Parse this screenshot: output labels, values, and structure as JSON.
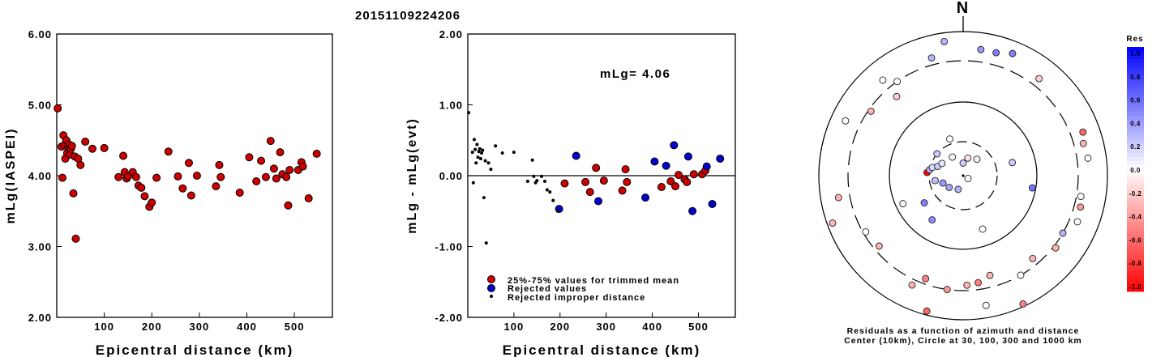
{
  "title": "20151109224206",
  "colors": {
    "red": "#cc0000",
    "blue": "#0000cc",
    "black": "#000000"
  },
  "left_plot": {
    "xlabel": "Epicentral distance (km)",
    "ylabel": "mLg(IASPEI)",
    "xticks": [
      "100",
      "200",
      "300",
      "400",
      "500"
    ],
    "yticks": [
      "6.00",
      "5.00",
      "4.00",
      "3.00",
      "2.00"
    ]
  },
  "mid_plot": {
    "xlabel": "Epicentral distance (km)",
    "ylabel": "mLg - mLg(evt)",
    "annotation": "mLg= 4.06",
    "xticks": [
      "100",
      "200",
      "300",
      "400",
      "500"
    ],
    "yticks": [
      "2.00",
      "1.00",
      "0.00",
      "-1.00",
      "-2.00"
    ],
    "legend": [
      "25%-75% values for trimmed mean",
      "Rejected values",
      "Rejected improper distance"
    ]
  },
  "polar_plot": {
    "north_label": "N",
    "caption_line1": "Residuals as a function of azimuth and distance",
    "caption_line2": "Center (10km), Circle at 30, 100, 300 and 1000 km"
  },
  "colorbar": {
    "title": "Res",
    "labels": [
      "1.0",
      "0.8",
      "0.6",
      "0.4",
      "0.2",
      "0.0",
      "-0.2",
      "-0.4",
      "-0.6",
      "-0.8",
      "-1.0"
    ]
  },
  "chart_data": [
    {
      "type": "scatter",
      "title": "20151109224206",
      "xlabel": "Epicentral distance (km)",
      "ylabel": "mLg(IASPEI)",
      "xlim": [
        0,
        580
      ],
      "ylim": [
        2.0,
        6.0
      ],
      "points": [
        [
          2,
          4.95
        ],
        [
          10,
          4.41
        ],
        [
          12,
          3.97
        ],
        [
          14,
          4.57
        ],
        [
          16,
          4.43
        ],
        [
          18,
          4.24
        ],
        [
          20,
          4.5
        ],
        [
          22,
          4.32
        ],
        [
          24,
          4.4
        ],
        [
          26,
          4.44
        ],
        [
          28,
          4.3
        ],
        [
          30,
          4.38
        ],
        [
          32,
          4.42
        ],
        [
          35,
          3.75
        ],
        [
          38,
          4.27
        ],
        [
          40,
          3.11
        ],
        [
          45,
          4.24
        ],
        [
          50,
          4.15
        ],
        [
          60,
          4.48
        ],
        [
          75,
          4.38
        ],
        [
          100,
          4.39
        ],
        [
          130,
          3.98
        ],
        [
          140,
          4.28
        ],
        [
          143,
          4.05
        ],
        [
          147,
          3.96
        ],
        [
          150,
          3.99
        ],
        [
          160,
          4.05
        ],
        [
          167,
          3.98
        ],
        [
          172,
          3.86
        ],
        [
          178,
          3.83
        ],
        [
          185,
          3.71
        ],
        [
          195,
          3.56
        ],
        [
          200,
          3.62
        ],
        [
          210,
          3.97
        ],
        [
          235,
          4.34
        ],
        [
          255,
          3.99
        ],
        [
          265,
          3.82
        ],
        [
          278,
          4.18
        ],
        [
          283,
          3.72
        ],
        [
          295,
          4.0
        ],
        [
          335,
          3.85
        ],
        [
          342,
          4.15
        ],
        [
          345,
          3.98
        ],
        [
          385,
          3.76
        ],
        [
          405,
          4.26
        ],
        [
          420,
          3.92
        ],
        [
          430,
          4.21
        ],
        [
          440,
          3.98
        ],
        [
          450,
          4.49
        ],
        [
          457,
          4.1
        ],
        [
          462,
          3.96
        ],
        [
          470,
          4.33
        ],
        [
          475,
          4.02
        ],
        [
          483,
          3.98
        ],
        [
          487,
          3.58
        ],
        [
          490,
          4.08
        ],
        [
          508,
          4.08
        ],
        [
          515,
          4.19
        ],
        [
          518,
          4.13
        ],
        [
          530,
          3.68
        ],
        [
          547,
          4.31
        ]
      ]
    },
    {
      "type": "scatter",
      "xlabel": "Epicentral distance (km)",
      "ylabel": "mLg - mLg(evt)",
      "xlim": [
        0,
        580
      ],
      "ylim": [
        -2.0,
        2.0
      ],
      "annotations": [
        "mLg= 4.06"
      ],
      "reference_line": 0.0,
      "series": [
        {
          "name": "25%-75% values for trimmed mean",
          "color": "#cc0000",
          "points": [
            [
              210,
              -0.11
            ],
            [
              255,
              -0.09
            ],
            [
              265,
              -0.23
            ],
            [
              278,
              0.11
            ],
            [
              295,
              -0.07
            ],
            [
              335,
              -0.21
            ],
            [
              342,
              0.09
            ],
            [
              345,
              -0.09
            ],
            [
              420,
              -0.16
            ],
            [
              440,
              -0.08
            ],
            [
              450,
              -0.15
            ],
            [
              457,
              0.01
            ],
            [
              470,
              -0.05
            ],
            [
              475,
              -0.09
            ],
            [
              490,
              0.02
            ],
            [
              508,
              0.02
            ],
            [
              515,
              0.07
            ]
          ]
        },
        {
          "name": "Rejected values",
          "color": "#0000cc",
          "points": [
            [
              198,
              -0.47
            ],
            [
              235,
              0.28
            ],
            [
              283,
              -0.36
            ],
            [
              385,
              -0.31
            ],
            [
              405,
              0.2
            ],
            [
              430,
              0.14
            ],
            [
              447,
              0.43
            ],
            [
              478,
              0.27
            ],
            [
              487,
              -0.5
            ],
            [
              518,
              0.13
            ],
            [
              530,
              -0.4
            ],
            [
              547,
              0.24
            ]
          ]
        },
        {
          "name": "Rejected improper distance",
          "color": "#000000",
          "points": [
            [
              2,
              0.89
            ],
            [
              10,
              0.33
            ],
            [
              12,
              -0.1
            ],
            [
              14,
              0.51
            ],
            [
              16,
              0.37
            ],
            [
              18,
              0.18
            ],
            [
              20,
              0.44
            ],
            [
              22,
              0.26
            ],
            [
              24,
              0.34
            ],
            [
              26,
              0.38
            ],
            [
              28,
              0.24
            ],
            [
              30,
              0.32
            ],
            [
              32,
              0.36
            ],
            [
              35,
              -0.31
            ],
            [
              38,
              0.21
            ],
            [
              40,
              -0.95
            ],
            [
              45,
              0.18
            ],
            [
              50,
              0.09
            ],
            [
              60,
              0.42
            ],
            [
              75,
              0.32
            ],
            [
              100,
              0.33
            ],
            [
              130,
              -0.08
            ],
            [
              140,
              0.22
            ],
            [
              143,
              -0.01
            ],
            [
              147,
              -0.1
            ],
            [
              150,
              -0.07
            ],
            [
              160,
              -0.01
            ],
            [
              167,
              -0.08
            ],
            [
              172,
              -0.2
            ],
            [
              178,
              -0.23
            ],
            [
              185,
              -0.35
            ],
            [
              195,
              -0.5
            ]
          ]
        }
      ]
    },
    {
      "type": "polar-scatter",
      "title": "N",
      "caption": "Residuals as a function of azimuth and distance Center (10km), Circle at 30, 100, 300 and 1000 km",
      "rings_km": [
        30,
        100,
        300,
        1000
      ],
      "residual_range": [
        -1.0,
        1.0
      ],
      "points": [
        {
          "az": 0,
          "dist": 15,
          "res": 0.2
        },
        {
          "az": 15,
          "dist": 18,
          "res": -0.1
        },
        {
          "az": 40,
          "dist": 20,
          "res": 0.05
        },
        {
          "az": 120,
          "dist": 12,
          "res": 0.0
        },
        {
          "az": 200,
          "dist": 16,
          "res": 0.3
        },
        {
          "az": 230,
          "dist": 18,
          "res": 0.35
        },
        {
          "az": 250,
          "dist": 20,
          "res": 0.4
        },
        {
          "az": 260,
          "dist": 25,
          "res": 0.25
        },
        {
          "az": 275,
          "dist": 32,
          "res": -1.0
        },
        {
          "az": 280,
          "dist": 30,
          "res": 0.3
        },
        {
          "az": 285,
          "dist": 28,
          "res": 0.15
        },
        {
          "az": 290,
          "dist": 24,
          "res": 0.2
        },
        {
          "az": 300,
          "dist": 22,
          "res": 0.1
        },
        {
          "az": 310,
          "dist": 30,
          "res": 0.2
        },
        {
          "az": 330,
          "dist": 20,
          "res": 0.0
        },
        {
          "az": 340,
          "dist": 35,
          "res": 0.0
        },
        {
          "az": 75,
          "dist": 50,
          "res": 0.2
        },
        {
          "az": 100,
          "dist": 90,
          "res": 0.55
        },
        {
          "az": 160,
          "dist": 60,
          "res": 0.0
        },
        {
          "az": 215,
          "dist": 55,
          "res": 0.45
        },
        {
          "az": 235,
          "dist": 45,
          "res": 0.5
        },
        {
          "az": 245,
          "dist": 80,
          "res": 0.0
        },
        {
          "az": 320,
          "dist": 220,
          "res": -0.2
        },
        {
          "az": 325,
          "dist": 300,
          "res": 0.0
        },
        {
          "az": 345,
          "dist": 400,
          "res": 0.3
        },
        {
          "az": 352,
          "dist": 700,
          "res": 0.3
        },
        {
          "az": 8,
          "dist": 500,
          "res": 0.4
        },
        {
          "az": 15,
          "dist": 500,
          "res": 0.5
        },
        {
          "az": 22,
          "dist": 600,
          "res": 0.5
        },
        {
          "az": 38,
          "dist": 420,
          "res": -0.2
        },
        {
          "az": 70,
          "dist": 500,
          "res": -0.6
        },
        {
          "az": 75,
          "dist": 440,
          "res": -0.3
        },
        {
          "az": 82,
          "dist": 470,
          "res": 0.0
        },
        {
          "az": 100,
          "dist": 360,
          "res": 0.0
        },
        {
          "az": 105,
          "dist": 390,
          "res": -0.4
        },
        {
          "az": 112,
          "dist": 420,
          "res": 0.0
        },
        {
          "az": 120,
          "dist": 300,
          "res": 0.3
        },
        {
          "az": 128,
          "dist": 330,
          "res": -0.3
        },
        {
          "az": 140,
          "dist": 250,
          "res": -0.3
        },
        {
          "az": 150,
          "dist": 300,
          "res": 0.0
        },
        {
          "az": 165,
          "dist": 220,
          "res": -0.3
        },
        {
          "az": 172,
          "dist": 250,
          "res": -0.5
        },
        {
          "az": 178,
          "dist": 260,
          "res": -0.3
        },
        {
          "az": 188,
          "dist": 300,
          "res": -0.4
        },
        {
          "az": 200,
          "dist": 260,
          "res": -0.5
        },
        {
          "az": 205,
          "dist": 380,
          "res": -0.3
        },
        {
          "az": 230,
          "dist": 260,
          "res": -0.3
        },
        {
          "az": 240,
          "dist": 280,
          "res": 0.0
        },
        {
          "az": 260,
          "dist": 480,
          "res": -0.3
        },
        {
          "az": 295,
          "dist": 550,
          "res": 0.0
        },
        {
          "az": 305,
          "dist": 280,
          "res": -0.3
        },
        {
          "az": 320,
          "dist": 450,
          "res": 0.0
        },
        {
          "az": 155,
          "dist": 900,
          "res": -0.5
        },
        {
          "az": 195,
          "dist": 850,
          "res": -0.6
        },
        {
          "az": 250,
          "dist": 800,
          "res": -0.3
        },
        {
          "az": 170,
          "dist": 600,
          "res": 0.0
        }
      ]
    }
  ]
}
